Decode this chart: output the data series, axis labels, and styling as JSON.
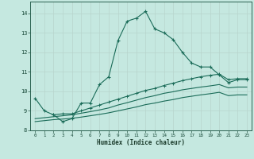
{
  "xlabel": "Humidex (Indice chaleur)",
  "xlim": [
    -0.5,
    23.5
  ],
  "ylim": [
    8,
    14.6
  ],
  "yticks": [
    8,
    9,
    10,
    11,
    12,
    13,
    14
  ],
  "xticks": [
    0,
    1,
    2,
    3,
    4,
    5,
    6,
    7,
    8,
    9,
    10,
    11,
    12,
    13,
    14,
    15,
    16,
    17,
    18,
    19,
    20,
    21,
    22,
    23
  ],
  "bg_color": "#c5e8e0",
  "grid_color_major": "#b8d4cc",
  "grid_color_minor": "#c0dcd4",
  "line_color": "#1a6b58",
  "line1_x": [
    0,
    1,
    2,
    3,
    4,
    5,
    6,
    7,
    8,
    9,
    10,
    11,
    12,
    13,
    14,
    15,
    16,
    17,
    18,
    19,
    20,
    21,
    22,
    23
  ],
  "line1_y": [
    9.65,
    9.0,
    8.8,
    8.45,
    8.6,
    9.4,
    9.4,
    10.35,
    10.75,
    12.6,
    13.6,
    13.75,
    14.1,
    13.2,
    13.0,
    12.65,
    12.0,
    11.45,
    11.25,
    11.25,
    10.85,
    10.45,
    10.6,
    10.6
  ],
  "line2_x": [
    2,
    3,
    4,
    5,
    6,
    7,
    8,
    9,
    10,
    11,
    12,
    13,
    14,
    15,
    16,
    17,
    18,
    19,
    20,
    21,
    22,
    23
  ],
  "line2_y": [
    8.8,
    8.85,
    8.85,
    9.0,
    9.15,
    9.3,
    9.45,
    9.6,
    9.75,
    9.9,
    10.05,
    10.15,
    10.3,
    10.42,
    10.55,
    10.65,
    10.75,
    10.82,
    10.88,
    10.6,
    10.65,
    10.65
  ],
  "line3_x": [
    0,
    1,
    2,
    3,
    4,
    5,
    6,
    7,
    8,
    9,
    10,
    11,
    12,
    13,
    14,
    15,
    16,
    17,
    18,
    19,
    20,
    21,
    22,
    23
  ],
  "line3_y": [
    8.6,
    8.65,
    8.7,
    8.75,
    8.8,
    8.88,
    8.96,
    9.05,
    9.15,
    9.3,
    9.42,
    9.55,
    9.68,
    9.78,
    9.9,
    9.98,
    10.08,
    10.15,
    10.22,
    10.28,
    10.35,
    10.18,
    10.22,
    10.22
  ],
  "line4_x": [
    0,
    1,
    2,
    3,
    4,
    5,
    6,
    7,
    8,
    9,
    10,
    11,
    12,
    13,
    14,
    15,
    16,
    17,
    18,
    19,
    20,
    21,
    22,
    23
  ],
  "line4_y": [
    8.45,
    8.5,
    8.55,
    8.58,
    8.62,
    8.68,
    8.75,
    8.82,
    8.9,
    9.0,
    9.1,
    9.2,
    9.32,
    9.4,
    9.5,
    9.58,
    9.68,
    9.75,
    9.82,
    9.88,
    9.95,
    9.78,
    9.82,
    9.82
  ]
}
